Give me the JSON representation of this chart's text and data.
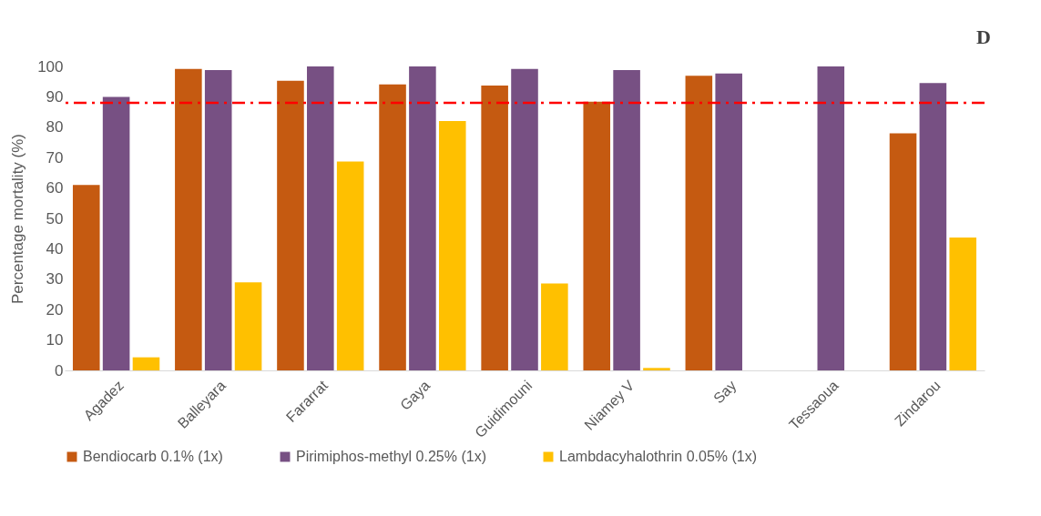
{
  "chart_data": {
    "type": "bar",
    "ylabel": "Percentage mortality (%)",
    "annotations": [
      "D"
    ],
    "categories": [
      "Agadez",
      "Balleyara",
      "Fararrat",
      "Gaya",
      "Guidimouni",
      "Niamey V",
      "Say",
      "Tessaoua",
      "Zindarou"
    ],
    "series": [
      {
        "name": "Bendiocarb 0.1% (1x)",
        "color": "#c55a11",
        "values": [
          61,
          99.2,
          95.3,
          94.1,
          93.7,
          88.4,
          96.9,
          null,
          78
        ]
      },
      {
        "name": "Pirimiphos-methyl 0.25% (1x)",
        "color": "#775083",
        "values": [
          90,
          98.8,
          100,
          100,
          99.2,
          98.8,
          97.7,
          100,
          94.5
        ]
      },
      {
        "name": "Lambdacyhalothrin 0.05% (1x)",
        "color": "#ffc000",
        "values": [
          4.3,
          29,
          68.7,
          82,
          28.6,
          0.8,
          null,
          null,
          43.7
        ]
      }
    ],
    "ylim": [
      0,
      100
    ],
    "yticks": [
      0,
      10,
      20,
      30,
      40,
      50,
      60,
      70,
      80,
      90,
      100
    ],
    "grid": false,
    "legend": "bottom",
    "ref_lines": [
      {
        "axis": "y",
        "value": 88,
        "color": "#ff0000",
        "line_style": "dashdot"
      }
    ]
  }
}
